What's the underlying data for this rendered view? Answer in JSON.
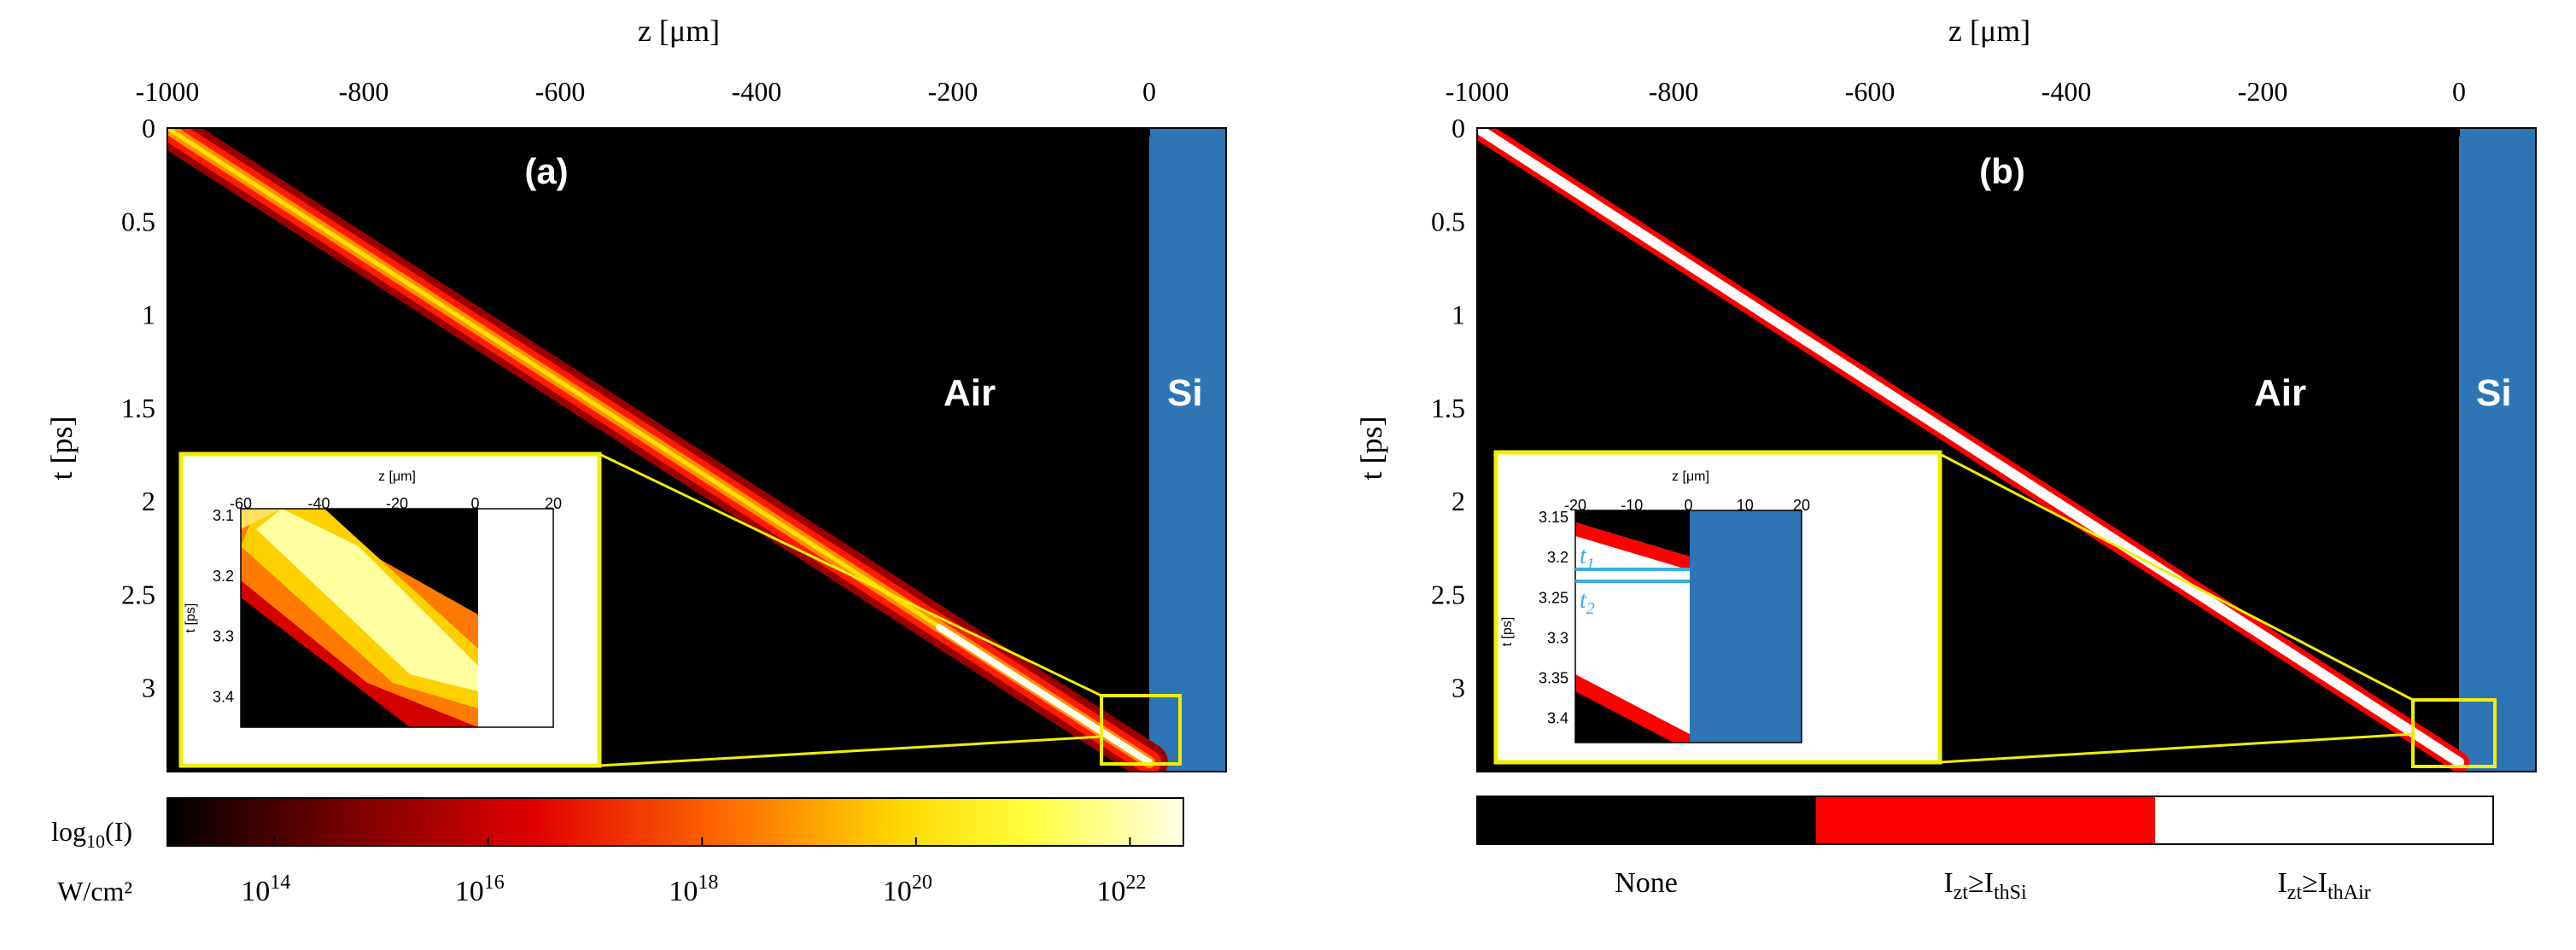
{
  "figure": "two-panel heatmap of pulse intensity in air approaching silicon",
  "chart_data": [
    {
      "type": "heatmap",
      "panel_label": "(a)",
      "xlabel": "z [μm]",
      "ylabel": "t [ps]",
      "xlim": [
        -1000,
        80
      ],
      "ylim": [
        0,
        3.45
      ],
      "x_ticks": [
        -1000,
        -800,
        -600,
        -400,
        -200,
        0
      ],
      "x_tick_labels": [
        "-1000",
        "-800",
        "-600",
        "-400",
        "-200",
        "0"
      ],
      "y_ticks": [
        0,
        0.5,
        1,
        1.5,
        2,
        2.5,
        3
      ],
      "y_tick_labels": [
        "0",
        "0.5",
        "1",
        "1.5",
        "2",
        "2.5",
        "3"
      ],
      "pulse_line": {
        "z_start": -1000,
        "t_start": 0,
        "z_end": 0,
        "t_end": 3.4
      },
      "regions": [
        {
          "label": "Air",
          "z_range": [
            -1000,
            0
          ],
          "color": "#000000"
        },
        {
          "label": "Si",
          "z_range": [
            0,
            80
          ],
          "color": "#2e75b6"
        }
      ],
      "zoom_box": {
        "z_range": [
          -60,
          20
        ],
        "t_range": [
          3.1,
          3.45
        ]
      },
      "inset": {
        "xlabel": "z [μm]",
        "ylabel": "t [ps]",
        "xlim": [
          -60,
          20
        ],
        "ylim": [
          3.1,
          3.45
        ],
        "x_ticks": [
          -60,
          -40,
          -20,
          0,
          20
        ],
        "x_tick_labels": [
          "-60",
          "-40",
          "-20",
          "0",
          "20"
        ],
        "y_ticks": [
          3.1,
          3.2,
          3.3,
          3.4
        ],
        "y_tick_labels": [
          "3.1",
          "3.2",
          "3.3",
          "3.4"
        ]
      },
      "colorbar": {
        "label": "log10(I)",
        "unit": "W/cm²",
        "range": [
          13,
          22.5
        ],
        "ticks": [
          14,
          16,
          18,
          20,
          22
        ],
        "colormap": [
          "#000000",
          "#7a0000",
          "#e00000",
          "#ff6a00",
          "#ffd800",
          "#ffff40",
          "#ffffe6"
        ]
      }
    },
    {
      "type": "heatmap",
      "panel_label": "(b)",
      "xlabel": "z [μm]",
      "ylabel": "t [ps]",
      "xlim": [
        -1000,
        80
      ],
      "ylim": [
        0,
        3.45
      ],
      "x_ticks": [
        -1000,
        -800,
        -600,
        -400,
        -200,
        0
      ],
      "x_tick_labels": [
        "-1000",
        "-800",
        "-600",
        "-400",
        "-200",
        "0"
      ],
      "y_ticks": [
        0,
        0.5,
        1,
        1.5,
        2,
        2.5,
        3
      ],
      "y_tick_labels": [
        "0",
        "0.5",
        "1",
        "1.5",
        "2",
        "2.5",
        "3"
      ],
      "pulse_line": {
        "z_start": -1000,
        "t_start": 0,
        "z_end": 0,
        "t_end": 3.4
      },
      "regions": [
        {
          "label": "Air",
          "z_range": [
            -1000,
            0
          ],
          "color": "#000000"
        },
        {
          "label": "Si",
          "z_range": [
            0,
            80
          ],
          "color": "#2e75b6"
        }
      ],
      "zoom_box": {
        "z_range": [
          -20,
          20
        ],
        "t_range": [
          3.15,
          3.45
        ]
      },
      "inset": {
        "xlabel": "z [μm]",
        "ylabel": "t [ps]",
        "xlim": [
          -20,
          20
        ],
        "ylim": [
          3.15,
          3.43
        ],
        "x_ticks": [
          -20,
          -10,
          0,
          10,
          20
        ],
        "x_tick_labels": [
          "-20",
          "-10",
          "0",
          "10",
          "20"
        ],
        "y_ticks": [
          3.15,
          3.2,
          3.25,
          3.3,
          3.35,
          3.4
        ],
        "y_tick_labels": [
          "3.15",
          "3.2",
          "3.25",
          "3.3",
          "3.35",
          "3.4"
        ],
        "markers": [
          {
            "label": "t",
            "subscript": "1",
            "t": 3.215
          },
          {
            "label": "t",
            "subscript": "2",
            "t": 3.232
          }
        ]
      },
      "legend": {
        "categories": [
          {
            "label": "None",
            "color": "#000000"
          },
          {
            "label": "I",
            "sub": "zt",
            "op": "≥I",
            "sub2": "thSi",
            "color": "#ff0000"
          },
          {
            "label": "I",
            "sub": "zt",
            "op": "≥I",
            "sub2": "thAir",
            "color": "#ffffff"
          }
        ]
      }
    }
  ],
  "colors": {
    "air": "#000000",
    "si": "#2e75b6",
    "highlight": "#f0f000",
    "marker": "#3ab0e0"
  }
}
